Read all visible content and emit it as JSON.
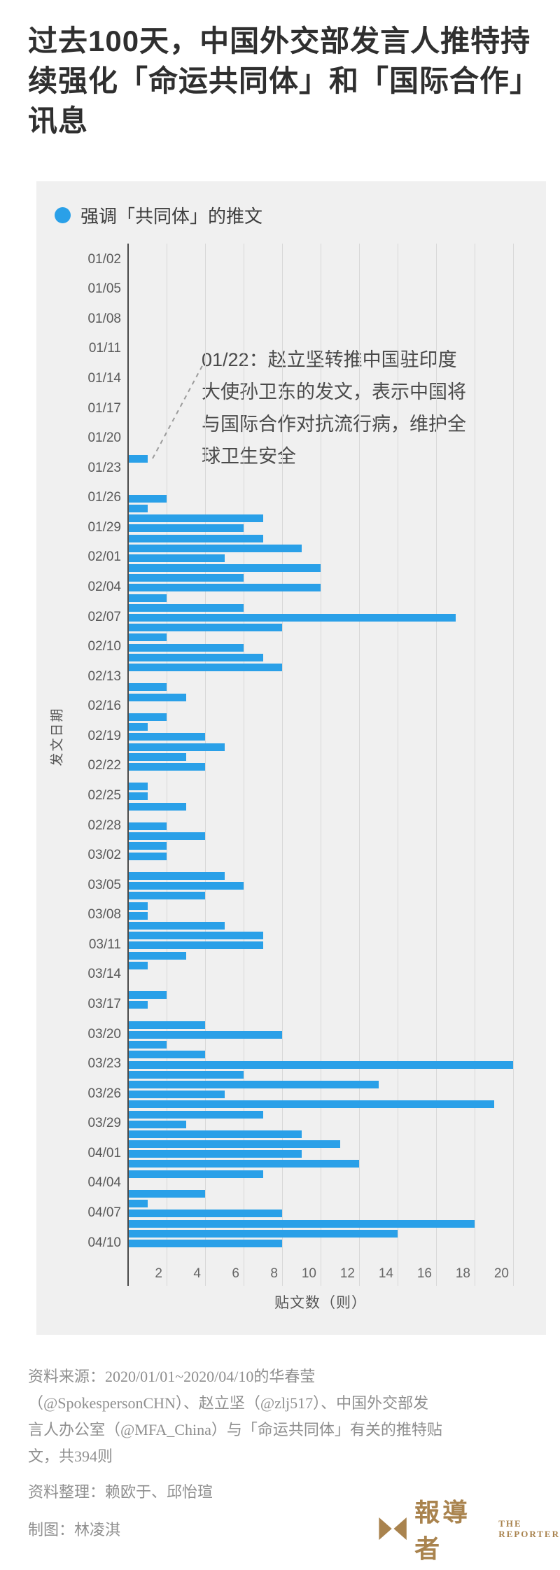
{
  "title": "过去100天，中国外交部发言人推特持续强化「命运共同体」和「国际合作」讯息",
  "legend": {
    "label": "强调「共同体」的推文"
  },
  "annotation": {
    "text": "01/22：赵立坚转推中国驻印度大使孙卫东的发文，表示中国将与国际合作对抗流行病，维护全球卫生安全",
    "lines": [
      "01/22：赵立坚转推中国驻印度",
      "大使孙卫东的发文，表示中国将",
      "与国际合作对抗流行病，维护全",
      "球卫生安全"
    ]
  },
  "chart_data": {
    "type": "bar",
    "orientation": "horizontal",
    "series_name": "强调「共同体」的推文",
    "xlabel": "贴文数（则）",
    "ylabel": "发文日期",
    "xlim": [
      0,
      20
    ],
    "xticks": [
      2,
      4,
      6,
      8,
      10,
      12,
      14,
      16,
      18,
      20
    ],
    "ytick_interval": 3,
    "grid": true,
    "bar_color": "#2aa0e8",
    "total_posts": 394,
    "categories": [
      "01/02",
      "01/03",
      "01/04",
      "01/05",
      "01/06",
      "01/07",
      "01/08",
      "01/09",
      "01/10",
      "01/11",
      "01/12",
      "01/13",
      "01/14",
      "01/15",
      "01/16",
      "01/17",
      "01/18",
      "01/19",
      "01/20",
      "01/21",
      "01/22",
      "01/23",
      "01/24",
      "01/25",
      "01/26",
      "01/27",
      "01/28",
      "01/29",
      "01/30",
      "01/31",
      "02/01",
      "02/02",
      "02/03",
      "02/04",
      "02/05",
      "02/06",
      "02/07",
      "02/08",
      "02/09",
      "02/10",
      "02/11",
      "02/12",
      "02/13",
      "02/14",
      "02/15",
      "02/16",
      "02/17",
      "02/18",
      "02/19",
      "02/20",
      "02/21",
      "02/22",
      "02/23",
      "02/24",
      "02/25",
      "02/26",
      "02/27",
      "02/28",
      "02/29",
      "03/01",
      "03/02",
      "03/03",
      "03/04",
      "03/05",
      "03/06",
      "03/07",
      "03/08",
      "03/09",
      "03/10",
      "03/11",
      "03/12",
      "03/13",
      "03/14",
      "03/15",
      "03/16",
      "03/17",
      "03/18",
      "03/19",
      "03/20",
      "03/21",
      "03/22",
      "03/23",
      "03/24",
      "03/25",
      "03/26",
      "03/27",
      "03/28",
      "03/29",
      "03/30",
      "03/31",
      "04/01",
      "04/02",
      "04/03",
      "04/04",
      "04/05",
      "04/06",
      "04/07",
      "04/08",
      "04/09",
      "04/10"
    ],
    "values": [
      0,
      0,
      0,
      0,
      0,
      0,
      0,
      0,
      0,
      0,
      0,
      0,
      0,
      0,
      0,
      0,
      0,
      0,
      0,
      0,
      1,
      0,
      0,
      0,
      2,
      1,
      7,
      6,
      7,
      9,
      5,
      10,
      6,
      10,
      2,
      6,
      17,
      8,
      2,
      6,
      7,
      8,
      0,
      2,
      3,
      0,
      2,
      1,
      4,
      5,
      3,
      4,
      0,
      1,
      1,
      3,
      0,
      2,
      4,
      2,
      2,
      0,
      5,
      6,
      4,
      1,
      1,
      5,
      7,
      7,
      3,
      1,
      0,
      0,
      2,
      1,
      0,
      4,
      8,
      2,
      4,
      20,
      6,
      13,
      5,
      19,
      7,
      3,
      9,
      11,
      9,
      12,
      7,
      0,
      4,
      1,
      8,
      18,
      14,
      8
    ]
  },
  "footer": {
    "source": "资料来源：2020/01/01~2020/04/10的华春莹（@SpokespersonCHN）、赵立坚（@zlj517）、中国外交部发言人办公室（@MFA_China）与「命运共同体」有关的推特贴文，共394则",
    "source_lines": [
      "资料来源：2020/01/01~2020/04/10的华春莹",
      "（@SpokespersonCHN）、赵立坚（@zlj517）、中国外交部发",
      "言人办公室（@MFA_China）与「命运共同体」有关的推特贴",
      "文，共394则"
    ],
    "credit_data": "资料整理：赖欧于、邱怡瑄",
    "credit_chart": "制图：林凌淇",
    "logo": {
      "zh": "報導者",
      "en_line1": "THE",
      "en_line2": "REPORTER"
    }
  },
  "colors": {
    "bar": "#2aa0e8",
    "panel_bg": "#f0f0f0",
    "gridline": "#d8d8d8",
    "axis": "#4a4a4a",
    "title_text": "#2f2f2f",
    "footer_text": "#8f8f8f",
    "logo_bronze": "#a9834e"
  }
}
